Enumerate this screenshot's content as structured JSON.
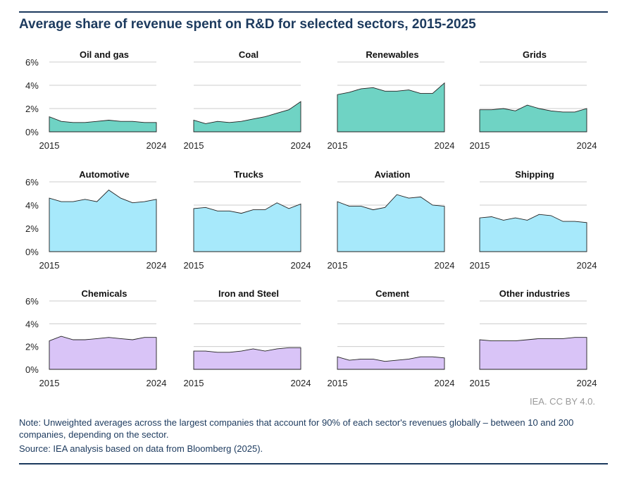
{
  "title": "Average share of revenue spent on R&D for selected sectors, 2015-2025",
  "credit": "IEA. CC BY 4.0.",
  "note": "Note: Unweighted averages across the largest companies that account for 90% of each sector's revenues globally – between 10 and 200 companies, depending on the sector.",
  "source": "Source: IEA analysis based on data from Bloomberg (2025).",
  "colors": {
    "energy": "#6fd3c4",
    "transport": "#a7e9fb",
    "industry": "#d9c4f7",
    "line": "#222222",
    "grid": "#cccccc"
  },
  "chart_data": [
    {
      "type": "area",
      "title": "Oil and gas",
      "group": "energy",
      "x": [
        2015,
        2016,
        2017,
        2018,
        2019,
        2020,
        2021,
        2022,
        2023,
        2024
      ],
      "values": [
        1.3,
        0.9,
        0.8,
        0.8,
        0.9,
        1.0,
        0.9,
        0.9,
        0.8,
        0.8
      ],
      "ylim": [
        0,
        6
      ],
      "yticks": [
        "0%",
        "2%",
        "4%",
        "6%"
      ],
      "xlabels": [
        "2015",
        "2024"
      ]
    },
    {
      "type": "area",
      "title": "Coal",
      "group": "energy",
      "x": [
        2015,
        2016,
        2017,
        2018,
        2019,
        2020,
        2021,
        2022,
        2023,
        2024
      ],
      "values": [
        1.0,
        0.7,
        0.9,
        0.8,
        0.9,
        1.1,
        1.3,
        1.6,
        1.9,
        2.6
      ],
      "ylim": [
        0,
        6
      ],
      "yticks": [
        "0%",
        "2%",
        "4%",
        "6%"
      ],
      "xlabels": [
        "2015",
        "2024"
      ]
    },
    {
      "type": "area",
      "title": "Renewables",
      "group": "energy",
      "x": [
        2015,
        2016,
        2017,
        2018,
        2019,
        2020,
        2021,
        2022,
        2023,
        2024
      ],
      "values": [
        3.2,
        3.4,
        3.7,
        3.8,
        3.5,
        3.5,
        3.6,
        3.3,
        3.3,
        4.2
      ],
      "ylim": [
        0,
        6
      ],
      "yticks": [
        "0%",
        "2%",
        "4%",
        "6%"
      ],
      "xlabels": [
        "2015",
        "2024"
      ]
    },
    {
      "type": "area",
      "title": "Grids",
      "group": "energy",
      "x": [
        2015,
        2016,
        2017,
        2018,
        2019,
        2020,
        2021,
        2022,
        2023,
        2024
      ],
      "values": [
        1.9,
        1.9,
        2.0,
        1.8,
        2.3,
        2.0,
        1.8,
        1.7,
        1.7,
        2.0
      ],
      "ylim": [
        0,
        6
      ],
      "yticks": [
        "0%",
        "2%",
        "4%",
        "6%"
      ],
      "xlabels": [
        "2015",
        "2024"
      ]
    },
    {
      "type": "area",
      "title": "Automotive",
      "group": "transport",
      "x": [
        2015,
        2016,
        2017,
        2018,
        2019,
        2020,
        2021,
        2022,
        2023,
        2024
      ],
      "values": [
        4.6,
        4.3,
        4.3,
        4.5,
        4.3,
        5.3,
        4.6,
        4.2,
        4.3,
        4.5
      ],
      "ylim": [
        0,
        6
      ],
      "yticks": [
        "0%",
        "2%",
        "4%",
        "6%"
      ],
      "xlabels": [
        "2015",
        "2024"
      ]
    },
    {
      "type": "area",
      "title": "Trucks",
      "group": "transport",
      "x": [
        2015,
        2016,
        2017,
        2018,
        2019,
        2020,
        2021,
        2022,
        2023,
        2024
      ],
      "values": [
        3.7,
        3.8,
        3.5,
        3.5,
        3.3,
        3.6,
        3.6,
        4.2,
        3.7,
        4.1
      ],
      "ylim": [
        0,
        6
      ],
      "yticks": [
        "0%",
        "2%",
        "4%",
        "6%"
      ],
      "xlabels": [
        "2015",
        "2024"
      ]
    },
    {
      "type": "area",
      "title": "Aviation",
      "group": "transport",
      "x": [
        2015,
        2016,
        2017,
        2018,
        2019,
        2020,
        2021,
        2022,
        2023,
        2024
      ],
      "values": [
        4.3,
        3.9,
        3.9,
        3.6,
        3.8,
        4.9,
        4.6,
        4.7,
        4.0,
        3.9
      ],
      "ylim": [
        0,
        6
      ],
      "yticks": [
        "0%",
        "2%",
        "4%",
        "6%"
      ],
      "xlabels": [
        "2015",
        "2024"
      ]
    },
    {
      "type": "area",
      "title": "Shipping",
      "group": "transport",
      "x": [
        2015,
        2016,
        2017,
        2018,
        2019,
        2020,
        2021,
        2022,
        2023,
        2024
      ],
      "values": [
        2.9,
        3.0,
        2.7,
        2.9,
        2.7,
        3.2,
        3.1,
        2.6,
        2.6,
        2.5
      ],
      "ylim": [
        0,
        6
      ],
      "yticks": [
        "0%",
        "2%",
        "4%",
        "6%"
      ],
      "xlabels": [
        "2015",
        "2024"
      ]
    },
    {
      "type": "area",
      "title": "Chemicals",
      "group": "industry",
      "x": [
        2015,
        2016,
        2017,
        2018,
        2019,
        2020,
        2021,
        2022,
        2023,
        2024
      ],
      "values": [
        2.5,
        2.9,
        2.6,
        2.6,
        2.7,
        2.8,
        2.7,
        2.6,
        2.8,
        2.8
      ],
      "ylim": [
        0,
        6
      ],
      "yticks": [
        "0%",
        "2%",
        "4%",
        "6%"
      ],
      "xlabels": [
        "2015",
        "2024"
      ]
    },
    {
      "type": "area",
      "title": "Iron and Steel",
      "group": "industry",
      "x": [
        2015,
        2016,
        2017,
        2018,
        2019,
        2020,
        2021,
        2022,
        2023,
        2024
      ],
      "values": [
        1.6,
        1.6,
        1.5,
        1.5,
        1.6,
        1.8,
        1.6,
        1.8,
        1.9,
        1.9
      ],
      "ylim": [
        0,
        6
      ],
      "yticks": [
        "0%",
        "2%",
        "4%",
        "6%"
      ],
      "xlabels": [
        "2015",
        "2024"
      ]
    },
    {
      "type": "area",
      "title": "Cement",
      "group": "industry",
      "x": [
        2015,
        2016,
        2017,
        2018,
        2019,
        2020,
        2021,
        2022,
        2023,
        2024
      ],
      "values": [
        1.1,
        0.8,
        0.9,
        0.9,
        0.7,
        0.8,
        0.9,
        1.1,
        1.1,
        1.0
      ],
      "ylim": [
        0,
        6
      ],
      "yticks": [
        "0%",
        "2%",
        "4%",
        "6%"
      ],
      "xlabels": [
        "2015",
        "2024"
      ]
    },
    {
      "type": "area",
      "title": "Other industries",
      "group": "industry",
      "x": [
        2015,
        2016,
        2017,
        2018,
        2019,
        2020,
        2021,
        2022,
        2023,
        2024
      ],
      "values": [
        2.6,
        2.5,
        2.5,
        2.5,
        2.6,
        2.7,
        2.7,
        2.7,
        2.8,
        2.8
      ],
      "ylim": [
        0,
        6
      ],
      "yticks": [
        "0%",
        "2%",
        "4%",
        "6%"
      ],
      "xlabels": [
        "2015",
        "2024"
      ]
    }
  ]
}
